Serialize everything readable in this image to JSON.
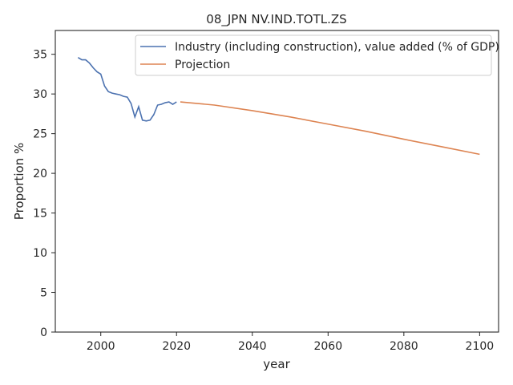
{
  "chart_data": {
    "type": "line",
    "title": "08_JPN NV.IND.TOTL.ZS",
    "xlabel": "year",
    "ylabel": "Proportion %",
    "xlim": [
      1988,
      2105
    ],
    "ylim": [
      0,
      38
    ],
    "xticks": [
      2000,
      2020,
      2040,
      2060,
      2080,
      2100
    ],
    "yticks": [
      0,
      5,
      10,
      15,
      20,
      25,
      30,
      35
    ],
    "grid": false,
    "legend_position": "top-right",
    "series": [
      {
        "name": "Industry (including construction), value added (% of GDP)",
        "color": "#4c72b0",
        "x": [
          1994,
          1995,
          1996,
          1997,
          1998,
          1999,
          2000,
          2001,
          2002,
          2003,
          2004,
          2005,
          2006,
          2007,
          2008,
          2009,
          2010,
          2011,
          2012,
          2013,
          2014,
          2015,
          2016,
          2017,
          2018,
          2019,
          2020
        ],
        "y": [
          34.6,
          34.3,
          34.3,
          33.9,
          33.3,
          32.8,
          32.5,
          31.0,
          30.3,
          30.1,
          30.0,
          29.9,
          29.7,
          29.6,
          28.8,
          27.1,
          28.4,
          26.7,
          26.6,
          26.7,
          27.4,
          28.6,
          28.7,
          28.9,
          29.0,
          28.7,
          29.0
        ]
      },
      {
        "name": "Projection",
        "color": "#dd8452",
        "x": [
          2021,
          2030,
          2040,
          2050,
          2060,
          2070,
          2080,
          2090,
          2100
        ],
        "y": [
          29.0,
          28.6,
          27.9,
          27.1,
          26.2,
          25.3,
          24.3,
          23.35,
          22.4
        ]
      }
    ]
  }
}
